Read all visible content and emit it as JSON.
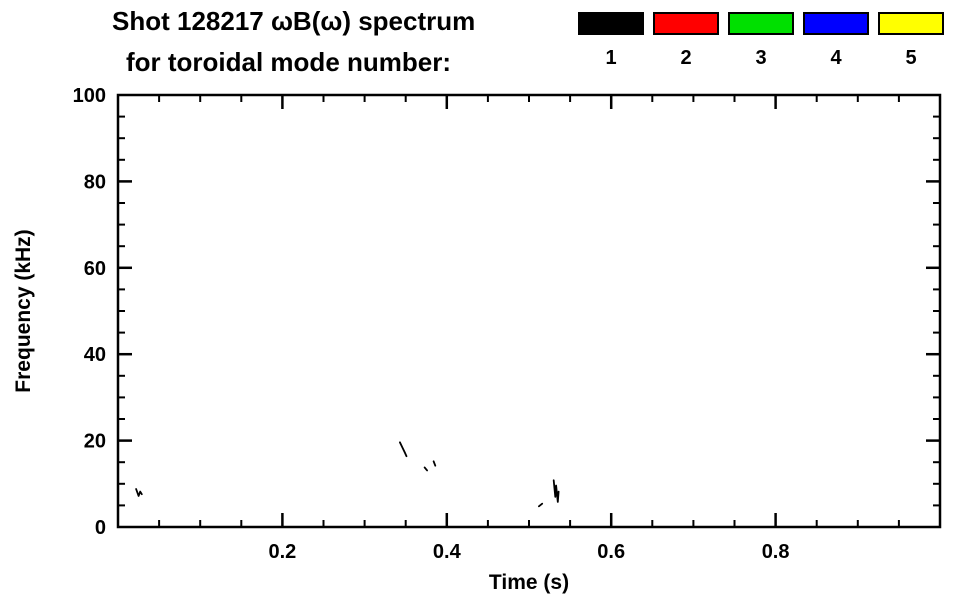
{
  "header": {
    "title_line1": "Shot 128217 ωB(ω) spectrum",
    "title_line2": "for toroidal mode number:"
  },
  "legend": {
    "entries": [
      {
        "label": "1",
        "color": "#000000"
      },
      {
        "label": "2",
        "color": "#ff0000"
      },
      {
        "label": "3",
        "color": "#00e000"
      },
      {
        "label": "4",
        "color": "#0000ff"
      },
      {
        "label": "5",
        "color": "#ffff00"
      }
    ]
  },
  "chart_data": {
    "type": "scatter",
    "title": "Shot 128217 ωB(ω) spectrum for toroidal mode number: 1–5",
    "xlabel": "Time (s)",
    "ylabel": "Frequency (kHz)",
    "xlim": [
      0,
      1.0
    ],
    "ylim": [
      0,
      100
    ],
    "xticks": [
      0.2,
      0.4,
      0.6,
      0.8
    ],
    "yticks": [
      0,
      20,
      40,
      60,
      80,
      100
    ],
    "x_minor_step": 0.05,
    "y_minor_step": 5,
    "grid": false,
    "legend_position": "top-right",
    "background": "#ffffff",
    "frame_color": "#000000",
    "series": [
      {
        "name": "mode 1",
        "color": "#000000",
        "segments": [
          [
            [
              0.022,
              8.8
            ],
            [
              0.025,
              7.2
            ],
            [
              0.027,
              8.2
            ],
            [
              0.029,
              7.6
            ]
          ],
          [
            [
              0.343,
              19.6
            ],
            [
              0.346,
              18.4
            ],
            [
              0.349,
              17.2
            ],
            [
              0.351,
              16.4
            ]
          ],
          [
            [
              0.373,
              13.8
            ],
            [
              0.376,
              13.1
            ]
          ],
          [
            [
              0.384,
              15.2
            ],
            [
              0.386,
              14.2
            ]
          ],
          [
            [
              0.512,
              4.8
            ],
            [
              0.516,
              5.4
            ]
          ],
          [
            [
              0.53,
              10.8
            ],
            [
              0.532,
              7.0
            ],
            [
              0.533,
              9.6
            ],
            [
              0.535,
              5.8
            ],
            [
              0.536,
              8.2
            ]
          ]
        ]
      }
    ]
  }
}
